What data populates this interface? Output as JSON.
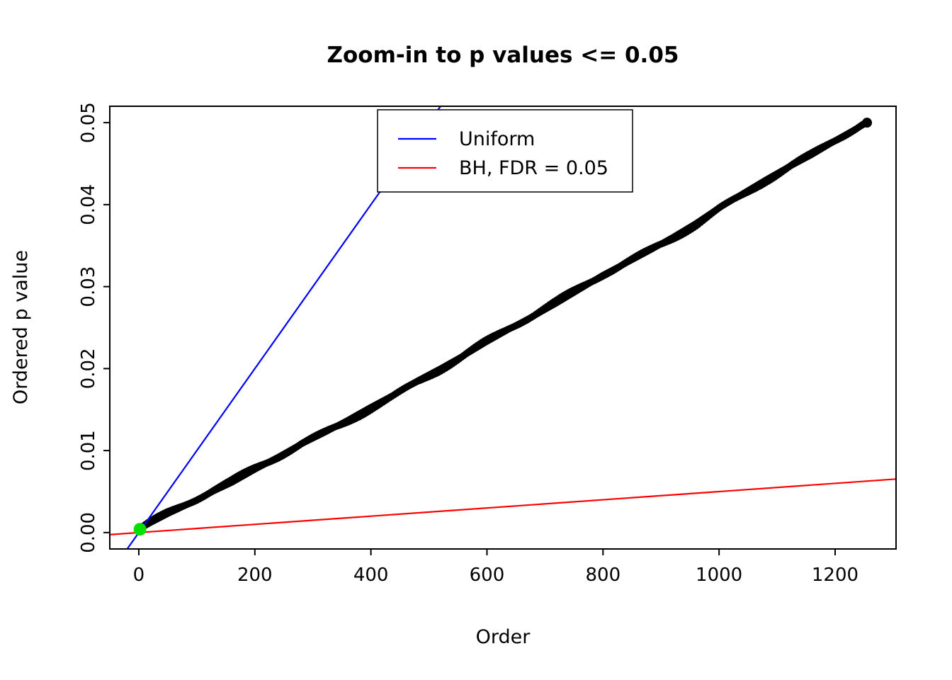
{
  "chart_data": {
    "type": "scatter",
    "title": "Zoom-in to p values <= 0.05",
    "xlabel": "Order",
    "ylabel": "Ordered p value",
    "xlim": [
      -50,
      1305
    ],
    "ylim": [
      -0.002,
      0.052
    ],
    "grid": false,
    "x_ticks": [
      {
        "value": 0,
        "label": "0"
      },
      {
        "value": 200,
        "label": "200"
      },
      {
        "value": 400,
        "label": "400"
      },
      {
        "value": 600,
        "label": "600"
      },
      {
        "value": 800,
        "label": "800"
      },
      {
        "value": 1000,
        "label": "1000"
      },
      {
        "value": 1200,
        "label": "1200"
      }
    ],
    "y_ticks": [
      {
        "value": 0.0,
        "label": "0.00"
      },
      {
        "value": 0.01,
        "label": "0.01"
      },
      {
        "value": 0.02,
        "label": "0.02"
      },
      {
        "value": 0.03,
        "label": "0.03"
      },
      {
        "value": 0.04,
        "label": "0.04"
      },
      {
        "value": 0.05,
        "label": "0.05"
      }
    ],
    "legend": {
      "position": "top-center",
      "entries": [
        {
          "label": "Uniform",
          "color": "#0000FF"
        },
        {
          "label": "BH, FDR = 0.05",
          "color": "#FF0000"
        }
      ]
    },
    "series": [
      {
        "name": "ordered-p-values",
        "type": "points",
        "color": "#000000",
        "point_radius": 5,
        "x_range": [
          0,
          1255
        ],
        "points": [
          [
            0,
            0.0004
          ],
          [
            20,
            0.0012
          ],
          [
            50,
            0.0023
          ],
          [
            80,
            0.0033
          ],
          [
            100,
            0.004
          ],
          [
            130,
            0.0051
          ],
          [
            160,
            0.0061
          ],
          [
            200,
            0.0077
          ],
          [
            240,
            0.0092
          ],
          [
            280,
            0.0108
          ],
          [
            320,
            0.0122
          ],
          [
            360,
            0.0137
          ],
          [
            400,
            0.0153
          ],
          [
            440,
            0.0168
          ],
          [
            480,
            0.0185
          ],
          [
            520,
            0.02
          ],
          [
            560,
            0.0216
          ],
          [
            600,
            0.0233
          ],
          [
            640,
            0.0249
          ],
          [
            680,
            0.0264
          ],
          [
            720,
            0.028
          ],
          [
            760,
            0.0297
          ],
          [
            800,
            0.0314
          ],
          [
            840,
            0.0329
          ],
          [
            880,
            0.0344
          ],
          [
            920,
            0.036
          ],
          [
            960,
            0.0377
          ],
          [
            1000,
            0.0396
          ],
          [
            1040,
            0.0413
          ],
          [
            1080,
            0.043
          ],
          [
            1120,
            0.0446
          ],
          [
            1160,
            0.0461
          ],
          [
            1200,
            0.0478
          ],
          [
            1230,
            0.049
          ],
          [
            1255,
            0.05
          ]
        ]
      },
      {
        "name": "uniform-line",
        "type": "line",
        "color": "#0000FF",
        "points": [
          [
            -20,
            -0.002
          ],
          [
            540,
            0.054
          ]
        ]
      },
      {
        "name": "bh-line",
        "type": "line",
        "color": "#FF0000",
        "points": [
          [
            -50,
            -0.00025
          ],
          [
            1305,
            0.006525
          ]
        ]
      },
      {
        "name": "significant-points",
        "type": "points",
        "color": "#00E000",
        "point_radius": 9,
        "points": [
          [
            2,
            0.0004
          ]
        ]
      }
    ]
  }
}
